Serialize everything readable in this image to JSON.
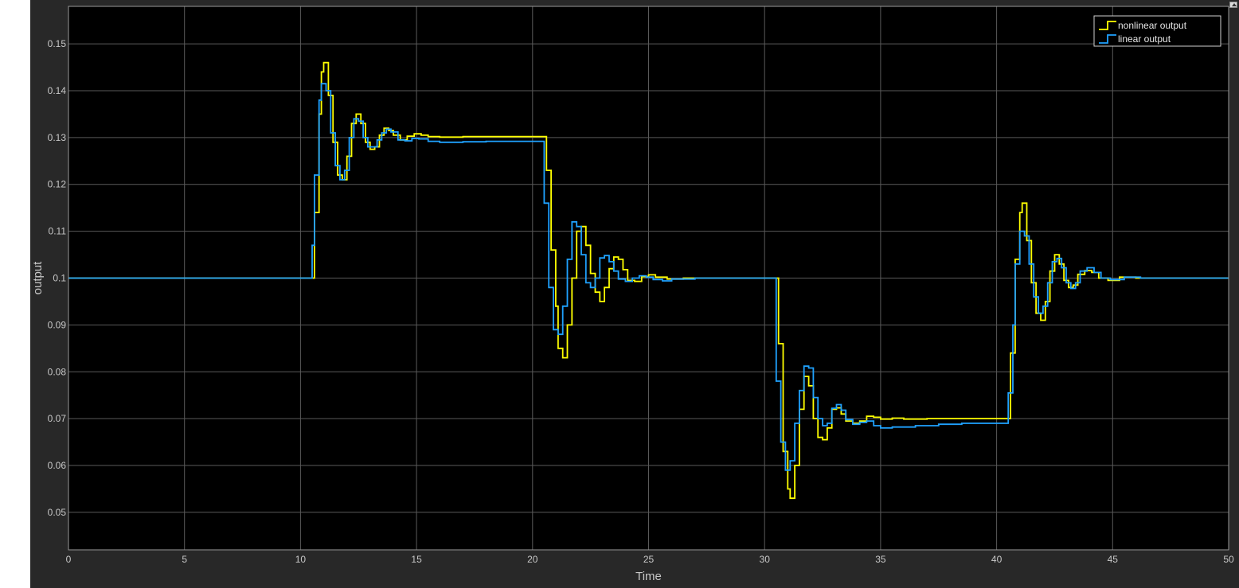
{
  "chart_data": {
    "type": "line",
    "title": "",
    "xlabel": "Time",
    "ylabel": "output",
    "xlim": [
      0,
      50
    ],
    "ylim": [
      0.042,
      0.158
    ],
    "xticks": [
      0,
      5,
      10,
      15,
      20,
      25,
      30,
      35,
      40,
      45,
      50
    ],
    "yticks": [
      0.05,
      0.06,
      0.07,
      0.08,
      0.09,
      0.1,
      0.11,
      0.12,
      0.13,
      0.14,
      0.15
    ],
    "ytick_labels": [
      "0.05",
      "0.06",
      "0.07",
      "0.08",
      "0.09",
      "0.1",
      "0.11",
      "0.12",
      "0.13",
      "0.14",
      "0.15"
    ],
    "grid": true,
    "legend": "top-right",
    "background": "#000000",
    "step": true,
    "series": [
      {
        "name": "nonlinear output",
        "color": "#ffff00",
        "points": [
          [
            0,
            0.1
          ],
          [
            10.4,
            0.1
          ],
          [
            10.6,
            0.114
          ],
          [
            10.8,
            0.135
          ],
          [
            10.9,
            0.144
          ],
          [
            11.0,
            0.146
          ],
          [
            11.2,
            0.139
          ],
          [
            11.4,
            0.129
          ],
          [
            11.6,
            0.122
          ],
          [
            11.8,
            0.121
          ],
          [
            12.0,
            0.126
          ],
          [
            12.2,
            0.133
          ],
          [
            12.4,
            0.135
          ],
          [
            12.6,
            0.133
          ],
          [
            12.8,
            0.129
          ],
          [
            13.0,
            0.1275
          ],
          [
            13.2,
            0.128
          ],
          [
            13.4,
            0.1305
          ],
          [
            13.6,
            0.132
          ],
          [
            13.8,
            0.1315
          ],
          [
            14.0,
            0.1305
          ],
          [
            14.3,
            0.1295
          ],
          [
            14.6,
            0.1303
          ],
          [
            14.9,
            0.1308
          ],
          [
            15.2,
            0.1305
          ],
          [
            15.5,
            0.1302
          ],
          [
            16.0,
            0.1301
          ],
          [
            17.0,
            0.1302
          ],
          [
            18.0,
            0.1302
          ],
          [
            20.4,
            0.1302
          ],
          [
            20.6,
            0.123
          ],
          [
            20.8,
            0.106
          ],
          [
            21.0,
            0.094
          ],
          [
            21.1,
            0.085
          ],
          [
            21.3,
            0.083
          ],
          [
            21.5,
            0.09
          ],
          [
            21.7,
            0.1
          ],
          [
            21.9,
            0.11
          ],
          [
            22.1,
            0.111
          ],
          [
            22.3,
            0.107
          ],
          [
            22.5,
            0.101
          ],
          [
            22.7,
            0.097
          ],
          [
            22.9,
            0.095
          ],
          [
            23.1,
            0.098
          ],
          [
            23.3,
            0.102
          ],
          [
            23.5,
            0.1045
          ],
          [
            23.7,
            0.104
          ],
          [
            23.9,
            0.1018
          ],
          [
            24.1,
            0.0995
          ],
          [
            24.4,
            0.0993
          ],
          [
            24.7,
            0.1003
          ],
          [
            25.0,
            0.1007
          ],
          [
            25.3,
            0.1002
          ],
          [
            25.8,
            0.0998
          ],
          [
            26.5,
            0.1
          ],
          [
            30.4,
            0.1
          ],
          [
            30.6,
            0.086
          ],
          [
            30.8,
            0.063
          ],
          [
            31.0,
            0.055
          ],
          [
            31.1,
            0.053
          ],
          [
            31.3,
            0.06
          ],
          [
            31.5,
            0.072
          ],
          [
            31.7,
            0.079
          ],
          [
            31.9,
            0.077
          ],
          [
            32.1,
            0.07
          ],
          [
            32.3,
            0.066
          ],
          [
            32.5,
            0.0655
          ],
          [
            32.7,
            0.068
          ],
          [
            32.9,
            0.072
          ],
          [
            33.1,
            0.0723
          ],
          [
            33.3,
            0.071
          ],
          [
            33.5,
            0.0695
          ],
          [
            33.8,
            0.069
          ],
          [
            34.1,
            0.0695
          ],
          [
            34.4,
            0.0705
          ],
          [
            34.7,
            0.0703
          ],
          [
            35.0,
            0.0699
          ],
          [
            35.5,
            0.0701
          ],
          [
            36.0,
            0.0699
          ],
          [
            37.0,
            0.07
          ],
          [
            40.4,
            0.07
          ],
          [
            40.6,
            0.084
          ],
          [
            40.8,
            0.104
          ],
          [
            41.0,
            0.114
          ],
          [
            41.1,
            0.116
          ],
          [
            41.3,
            0.108
          ],
          [
            41.5,
            0.099
          ],
          [
            41.7,
            0.0925
          ],
          [
            41.9,
            0.091
          ],
          [
            42.1,
            0.095
          ],
          [
            42.3,
            0.1015
          ],
          [
            42.5,
            0.105
          ],
          [
            42.7,
            0.103
          ],
          [
            42.9,
            0.0995
          ],
          [
            43.1,
            0.098
          ],
          [
            43.3,
            0.0985
          ],
          [
            43.5,
            0.1008
          ],
          [
            43.8,
            0.1016
          ],
          [
            44.1,
            0.1012
          ],
          [
            44.4,
            0.1
          ],
          [
            44.8,
            0.0995
          ],
          [
            45.3,
            0.1002
          ],
          [
            46.0,
            0.1
          ],
          [
            50,
            0.1
          ]
        ]
      },
      {
        "name": "linear output",
        "color": "#1fa2ff",
        "points": [
          [
            0,
            0.1
          ],
          [
            10.3,
            0.1
          ],
          [
            10.5,
            0.107
          ],
          [
            10.6,
            0.122
          ],
          [
            10.8,
            0.138
          ],
          [
            10.9,
            0.1415
          ],
          [
            11.1,
            0.14
          ],
          [
            11.3,
            0.131
          ],
          [
            11.5,
            0.124
          ],
          [
            11.7,
            0.121
          ],
          [
            11.9,
            0.123
          ],
          [
            12.1,
            0.13
          ],
          [
            12.3,
            0.134
          ],
          [
            12.5,
            0.1335
          ],
          [
            12.7,
            0.13
          ],
          [
            12.9,
            0.128
          ],
          [
            13.1,
            0.128
          ],
          [
            13.3,
            0.1295
          ],
          [
            13.5,
            0.131
          ],
          [
            13.7,
            0.1318
          ],
          [
            13.9,
            0.1312
          ],
          [
            14.2,
            0.1295
          ],
          [
            14.5,
            0.1293
          ],
          [
            14.8,
            0.1298
          ],
          [
            15.1,
            0.1297
          ],
          [
            15.5,
            0.1292
          ],
          [
            16.0,
            0.129
          ],
          [
            17.0,
            0.1291
          ],
          [
            18.0,
            0.1292
          ],
          [
            20.3,
            0.1292
          ],
          [
            20.5,
            0.116
          ],
          [
            20.7,
            0.098
          ],
          [
            20.9,
            0.089
          ],
          [
            21.1,
            0.088
          ],
          [
            21.3,
            0.094
          ],
          [
            21.5,
            0.104
          ],
          [
            21.7,
            0.112
          ],
          [
            21.9,
            0.111
          ],
          [
            22.1,
            0.105
          ],
          [
            22.3,
            0.099
          ],
          [
            22.5,
            0.098
          ],
          [
            22.7,
            0.1
          ],
          [
            22.9,
            0.1043
          ],
          [
            23.1,
            0.1048
          ],
          [
            23.3,
            0.1035
          ],
          [
            23.5,
            0.1015
          ],
          [
            23.7,
            0.0998
          ],
          [
            24.0,
            0.0993
          ],
          [
            24.3,
            0.1
          ],
          [
            24.6,
            0.1005
          ],
          [
            24.9,
            0.1002
          ],
          [
            25.2,
            0.0997
          ],
          [
            25.6,
            0.0994
          ],
          [
            26.0,
            0.0998
          ],
          [
            27.0,
            0.1
          ],
          [
            30.3,
            0.1
          ],
          [
            30.5,
            0.078
          ],
          [
            30.7,
            0.065
          ],
          [
            30.9,
            0.059
          ],
          [
            31.1,
            0.061
          ],
          [
            31.3,
            0.069
          ],
          [
            31.5,
            0.076
          ],
          [
            31.7,
            0.0812
          ],
          [
            31.9,
            0.0808
          ],
          [
            32.1,
            0.0745
          ],
          [
            32.3,
            0.07
          ],
          [
            32.5,
            0.0685
          ],
          [
            32.7,
            0.069
          ],
          [
            32.9,
            0.0722
          ],
          [
            33.1,
            0.073
          ],
          [
            33.3,
            0.0718
          ],
          [
            33.5,
            0.0698
          ],
          [
            33.8,
            0.0688
          ],
          [
            34.1,
            0.0692
          ],
          [
            34.4,
            0.0695
          ],
          [
            34.7,
            0.0685
          ],
          [
            35.0,
            0.068
          ],
          [
            35.5,
            0.0682
          ],
          [
            36.5,
            0.0685
          ],
          [
            37.5,
            0.0688
          ],
          [
            38.5,
            0.069
          ],
          [
            40.3,
            0.069
          ],
          [
            40.5,
            0.0755
          ],
          [
            40.7,
            0.09
          ],
          [
            40.8,
            0.103
          ],
          [
            41.0,
            0.11
          ],
          [
            41.2,
            0.109
          ],
          [
            41.4,
            0.103
          ],
          [
            41.6,
            0.096
          ],
          [
            41.8,
            0.0925
          ],
          [
            42.0,
            0.094
          ],
          [
            42.2,
            0.099
          ],
          [
            42.4,
            0.1035
          ],
          [
            42.6,
            0.1042
          ],
          [
            42.8,
            0.1022
          ],
          [
            43.0,
            0.099
          ],
          [
            43.2,
            0.0978
          ],
          [
            43.4,
            0.099
          ],
          [
            43.6,
            0.1015
          ],
          [
            43.9,
            0.1022
          ],
          [
            44.2,
            0.1012
          ],
          [
            44.5,
            0.1
          ],
          [
            44.9,
            0.0997
          ],
          [
            45.5,
            0.1002
          ],
          [
            46.2,
            0.1
          ],
          [
            50,
            0.1
          ]
        ]
      }
    ]
  }
}
